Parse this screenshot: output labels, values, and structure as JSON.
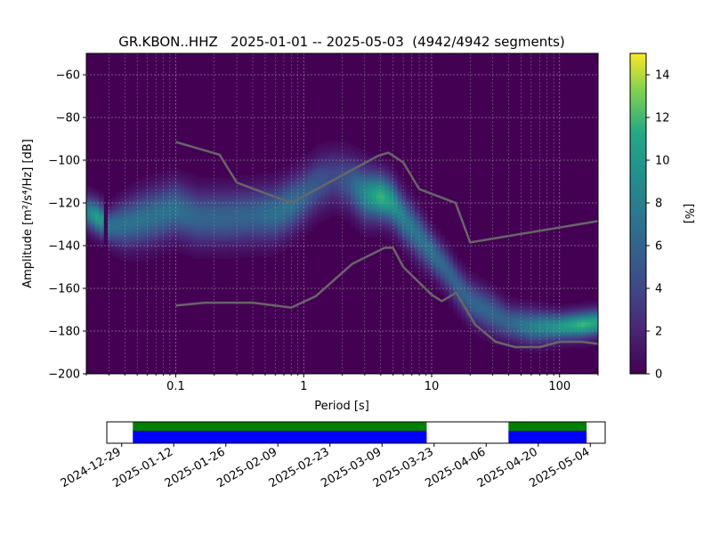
{
  "chart_data": {
    "type": "heatmap",
    "title": "GR.KBON..HHZ   2025-01-01 -- 2025-05-03  (4942/4942 segments)",
    "xlabel": "Period [s]",
    "ylabel": "Amplitude [m²/s⁴/Hz] [dB]",
    "x_scale": "log",
    "xlim": [
      0.02,
      200
    ],
    "ylim": [
      -200,
      -50
    ],
    "x_ticks": [
      0.1,
      1,
      10,
      100
    ],
    "x_tick_labels": [
      "0.1",
      "1",
      "10",
      "100"
    ],
    "y_ticks": [
      -60,
      -80,
      -100,
      -120,
      -140,
      -160,
      -180,
      -200
    ],
    "y_tick_labels": [
      "−60",
      "−80",
      "−100",
      "−120",
      "−140",
      "−160",
      "−180",
      "−200"
    ],
    "grid": true,
    "colorbar": {
      "label": "[%]",
      "range": [
        0,
        15
      ],
      "ticks": [
        0,
        2,
        4,
        6,
        8,
        10,
        12,
        14
      ],
      "tick_labels": [
        "0",
        "2",
        "4",
        "6",
        "8",
        "10",
        "12",
        "14"
      ],
      "colormap": "viridis"
    },
    "density_ridge": {
      "period": [
        0.02,
        0.025,
        0.03,
        0.04,
        0.06,
        0.1,
        0.15,
        0.25,
        0.4,
        0.6,
        0.8,
        1.0,
        1.3,
        1.7,
        2.2,
        3.0,
        4.0,
        5.0,
        6.0,
        8.0,
        10,
        13,
        16,
        20,
        30,
        40,
        60,
        100,
        150,
        200
      ],
      "amplitude_db": [
        -124,
        -127,
        -131,
        -130,
        -127,
        -123,
        -127,
        -127,
        -126,
        -125,
        -121,
        -117,
        -111,
        -108,
        -110,
        -116,
        -117,
        -120,
        -127,
        -136,
        -143,
        -151,
        -159,
        -166,
        -172,
        -176,
        -178,
        -178,
        -177,
        -176
      ],
      "peak_percent": [
        8,
        11,
        7,
        7,
        7,
        7,
        6,
        6,
        6,
        7,
        7,
        6,
        5,
        4,
        5,
        9,
        12,
        10,
        8,
        7,
        7,
        6,
        6,
        6,
        6,
        6,
        8,
        10,
        12,
        11
      ],
      "width_db": [
        5,
        5,
        5,
        7,
        8,
        8,
        8,
        8,
        8,
        8,
        8,
        8,
        8,
        8,
        8,
        8,
        7,
        7,
        7,
        7,
        6,
        6,
        6,
        6,
        6,
        5,
        5,
        4,
        4,
        4
      ]
    },
    "series": [
      {
        "x": [
          0.1,
          0.22,
          0.3,
          0.8,
          3.8,
          4.6,
          6.0,
          8.0,
          15.4,
          20.0,
          200
        ],
        "y": [
          -91.5,
          -97.4,
          -110.5,
          -120.0,
          -98.0,
          -96.5,
          -101.0,
          -113.5,
          -120.0,
          -138.5,
          -128.5
        ]
      },
      {
        "x": [
          0.1,
          0.17,
          0.4,
          0.8,
          1.24,
          2.4,
          4.3,
          5.0,
          6.0,
          10.0,
          12.0,
          15.6,
          21.9,
          31.6,
          45.0,
          70.0,
          100,
          150,
          200
        ],
        "y": [
          -168.0,
          -166.7,
          -166.7,
          -169.0,
          -163.7,
          -148.5,
          -141.0,
          -141.0,
          -150.0,
          -163.0,
          -166.0,
          -162.0,
          -177.0,
          -185.0,
          -187.5,
          -187.5,
          -185.0,
          -185.0,
          -186.0
        ]
      }
    ]
  },
  "timeline": {
    "tick_labels": [
      "2024-12-29",
      "2025-01-12",
      "2025-01-26",
      "2025-02-09",
      "2025-02-23",
      "2025-03-09",
      "2025-03-23",
      "2025-04-06",
      "2025-04-20",
      "2025-05-04"
    ],
    "range": [
      "2024-12-25",
      "2025-05-08"
    ],
    "coverage": [
      {
        "start": "2025-01-01",
        "end": "2025-03-21"
      },
      {
        "start": "2025-04-12",
        "end": "2025-05-03"
      }
    ],
    "colors": {
      "available": "#0000ff",
      "used": "#008000"
    }
  },
  "colors": {
    "noise_models": "#666666",
    "grid": "#999999",
    "background": "#440154"
  }
}
